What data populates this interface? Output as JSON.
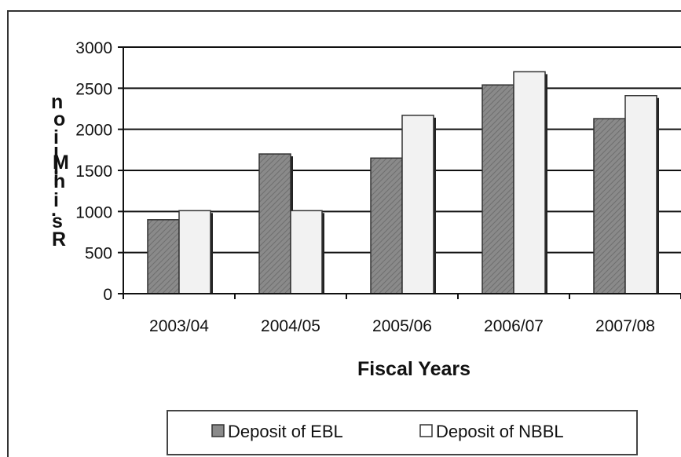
{
  "chart_data": {
    "type": "bar",
    "title": "",
    "xlabel": "Fiscal Years",
    "ylabel": "Rs. in Million",
    "ylabel_glyphs": [
      "n",
      "o",
      "i",
      "l",
      "l",
      "i",
      "M",
      "n",
      "i",
      ".",
      "s",
      "R"
    ],
    "categories": [
      "2003/04",
      "2004/05",
      "2005/06",
      "2006/07",
      "2007/08"
    ],
    "series": [
      {
        "name": "Deposit of EBL",
        "values": [
          900,
          1700,
          1650,
          2540,
          2130
        ],
        "color": "#8a8a8a",
        "pattern": "hatched"
      },
      {
        "name": "Deposit of NBBL",
        "values": [
          1010,
          1010,
          2170,
          2700,
          2410
        ],
        "color": "#f2f2f2",
        "pattern": "solid"
      }
    ],
    "ylim": [
      0,
      3000
    ],
    "yticks": [
      0,
      500,
      1000,
      1500,
      2000,
      2500,
      3000
    ],
    "grid": true,
    "legend": "bottom"
  }
}
